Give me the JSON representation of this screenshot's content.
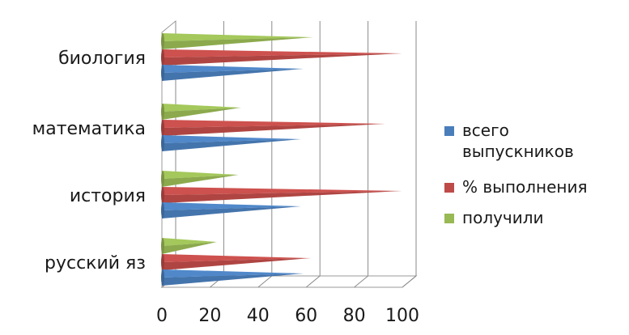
{
  "chart_data": {
    "type": "bar",
    "orientation": "horizontal",
    "style": "3d-cone",
    "categories": [
      "русский яз",
      "история",
      "математика",
      "биология"
    ],
    "series": [
      {
        "name": "всего выпускников",
        "color": "#4a7ebb",
        "values": [
          56,
          55,
          55,
          56
        ]
      },
      {
        "name": "% выполнения",
        "color": "#be4b48",
        "values": [
          59,
          97,
          90,
          97
        ]
      },
      {
        "name": " получили",
        "color": "#98b954",
        "values": [
          20,
          29,
          30,
          60
        ]
      }
    ],
    "x_ticks": [
      "0",
      "20",
      "40",
      "60",
      "80",
      "100"
    ],
    "xlim": [
      0,
      100
    ],
    "grid": true,
    "legend_position": "right",
    "title": "",
    "xlabel": "",
    "ylabel": ""
  }
}
